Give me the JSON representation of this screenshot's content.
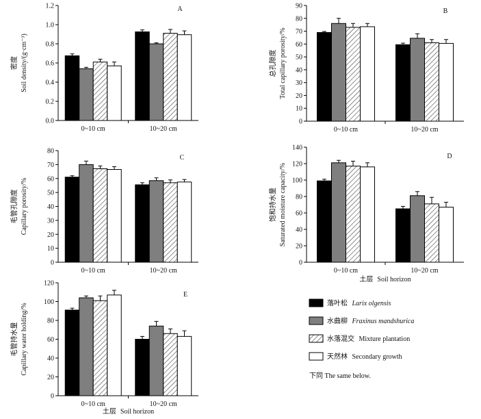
{
  "figure_title": "",
  "chart_data": [
    {
      "panel": "A",
      "type": "bar",
      "ylabel_cn": "密度",
      "ylabel_en": "Soil density/(g·cm⁻³)",
      "xlabel": "",
      "categories": [
        "0~10 cm",
        "10~20 cm"
      ],
      "ylim": [
        0,
        1.2
      ],
      "yticks": [
        "0.0",
        "0.2",
        "0.4",
        "0.6",
        "0.8",
        "1.0",
        "1.2"
      ],
      "series": [
        {
          "name": "Larix olgensis",
          "values": [
            0.675,
            0.925
          ],
          "errors": [
            0.02,
            0.02
          ]
        },
        {
          "name": "Fraxinus mandshurica",
          "values": [
            0.54,
            0.8
          ],
          "errors": [
            0.015,
            0.01
          ]
        },
        {
          "name": "Mixture plantation",
          "values": [
            0.61,
            0.91
          ],
          "errors": [
            0.03,
            0.04
          ]
        },
        {
          "name": "Secondary growth",
          "values": [
            0.57,
            0.895
          ],
          "errors": [
            0.04,
            0.04
          ]
        }
      ]
    },
    {
      "panel": "B",
      "type": "bar",
      "ylabel_cn": "总孔隙度",
      "ylabel_en": "Total capillary porosity/%",
      "xlabel": "",
      "categories": [
        "0~10 cm",
        "10~20 cm"
      ],
      "ylim": [
        0,
        90
      ],
      "yticks": [
        "0",
        "10",
        "20",
        "30",
        "40",
        "50",
        "60",
        "70",
        "80",
        "90"
      ],
      "series": [
        {
          "name": "Larix olgensis",
          "values": [
            69,
            59.5
          ],
          "errors": [
            0.8,
            1.2
          ]
        },
        {
          "name": "Fraxinus mandshurica",
          "values": [
            76,
            64.5
          ],
          "errors": [
            4,
            3.5
          ]
        },
        {
          "name": "Mixture plantation",
          "values": [
            73,
            61
          ],
          "errors": [
            3,
            2.5
          ]
        },
        {
          "name": "Secondary growth",
          "values": [
            73.5,
            60.5
          ],
          "errors": [
            2.5,
            3
          ]
        }
      ]
    },
    {
      "panel": "C",
      "type": "bar",
      "ylabel_cn": "毛管孔隙度",
      "ylabel_en": "Capillary porosity/%",
      "xlabel": "",
      "categories": [
        "0~10 cm",
        "10~20 cm"
      ],
      "ylim": [
        0,
        80
      ],
      "yticks": [
        "0",
        "10",
        "20",
        "30",
        "40",
        "50",
        "60",
        "70",
        "80"
      ],
      "series": [
        {
          "name": "Larix olgensis",
          "values": [
            61,
            55.5
          ],
          "errors": [
            1,
            1.5
          ]
        },
        {
          "name": "Fraxinus mandshurica",
          "values": [
            70,
            58.5
          ],
          "errors": [
            2.5,
            2
          ]
        },
        {
          "name": "Mixture plantation",
          "values": [
            67,
            57
          ],
          "errors": [
            2,
            2
          ]
        },
        {
          "name": "Secondary growth",
          "values": [
            66.5,
            57.5
          ],
          "errors": [
            2,
            1.8
          ]
        }
      ]
    },
    {
      "panel": "D",
      "type": "bar",
      "ylabel_cn": "饱和持水量",
      "ylabel_en": "Saturated moisture capacity/%",
      "xlabel_cn": "土层",
      "xlabel_en": "Soil horizon",
      "categories": [
        "0~10 cm",
        "10~20 cm"
      ],
      "ylim": [
        0,
        140
      ],
      "yticks": [
        "0",
        "20",
        "40",
        "60",
        "80",
        "100",
        "120",
        "140"
      ],
      "series": [
        {
          "name": "Larix olgensis",
          "values": [
            99,
            65
          ],
          "errors": [
            2,
            3
          ]
        },
        {
          "name": "Fraxinus mandshurica",
          "values": [
            121,
            81
          ],
          "errors": [
            3,
            5
          ]
        },
        {
          "name": "Mixture plantation",
          "values": [
            117,
            71
          ],
          "errors": [
            6,
            8
          ]
        },
        {
          "name": "Secondary growth",
          "values": [
            116,
            67
          ],
          "errors": [
            5,
            6
          ]
        }
      ]
    },
    {
      "panel": "E",
      "type": "bar",
      "ylabel_cn": "毛管持水量",
      "ylabel_en": "Capillary water holding/%",
      "xlabel_cn": "土层",
      "xlabel_en": "Soil horizon",
      "categories": [
        "0~10 cm",
        "10~20 cm"
      ],
      "ylim": [
        0,
        120
      ],
      "yticks": [
        "0",
        "20",
        "40",
        "60",
        "80",
        "100",
        "120"
      ],
      "series": [
        {
          "name": "Larix olgensis",
          "values": [
            91,
            60
          ],
          "errors": [
            2,
            3
          ]
        },
        {
          "name": "Fraxinus mandshurica",
          "values": [
            104,
            74
          ],
          "errors": [
            2,
            5
          ]
        },
        {
          "name": "Mixture plantation",
          "values": [
            101,
            66
          ],
          "errors": [
            5,
            5
          ]
        },
        {
          "name": "Secondary growth",
          "values": [
            107,
            63
          ],
          "errors": [
            5,
            6
          ]
        }
      ]
    }
  ],
  "legend": {
    "items": [
      {
        "cn": "落叶松",
        "en": "Larix olgensis",
        "italic": true,
        "fill": "#000000",
        "pattern": "solid"
      },
      {
        "cn": "水曲柳",
        "en": "Fraxinus mandshurica",
        "italic": true,
        "fill": "#7f7f7f",
        "pattern": "solid"
      },
      {
        "cn": "水落混交",
        "en": "Mixture plantation",
        "italic": false,
        "fill": "#ffffff",
        "pattern": "hatch"
      },
      {
        "cn": "天然林",
        "en": "Secondary growth",
        "italic": false,
        "fill": "#ffffff",
        "pattern": "solid"
      }
    ],
    "note": "下同 The same below."
  }
}
